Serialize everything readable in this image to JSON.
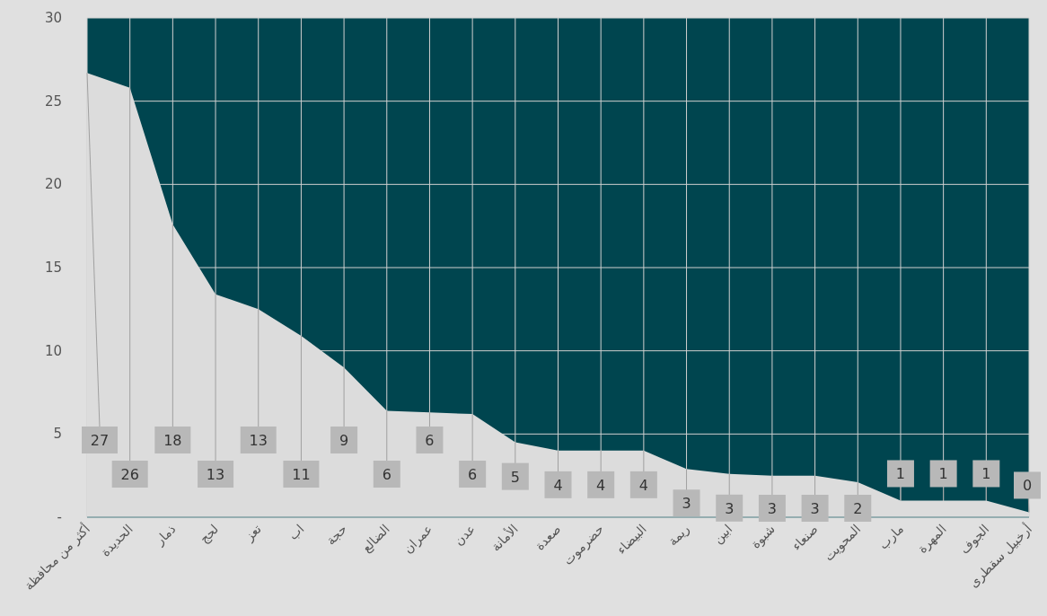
{
  "chart_data": {
    "type": "area",
    "categories": [
      "أكثر من محافظة",
      "الحديدة",
      "ذمار",
      "لحج",
      "تعز",
      "اب",
      "حجة",
      "الضالع",
      "عمران",
      "عدن",
      "الأمانة",
      "صعدة",
      "حضرموت",
      "البيضاء",
      "ريمة",
      "ابين",
      "شبوة",
      "صنعاء",
      "المحويت",
      "مارب",
      "المهرة",
      "الجوف",
      "أرخبيل سقطرى"
    ],
    "values": [
      26.7,
      25.8,
      17.6,
      13.4,
      12.5,
      10.9,
      9.0,
      6.4,
      6.3,
      6.2,
      4.5,
      4.0,
      4.0,
      4.0,
      2.9,
      2.6,
      2.5,
      2.5,
      2.1,
      1.0,
      1.0,
      1.0,
      0.3
    ],
    "value_labels": [
      "27",
      "26",
      "18",
      "13",
      "13",
      "11",
      "9",
      "6",
      "6",
      "6",
      "5",
      "4",
      "4",
      "4",
      "3",
      "3",
      "3",
      "3",
      "2",
      "1",
      "1",
      "1",
      "0"
    ],
    "color": "#dcdcdc",
    "ylim": [
      0,
      30
    ],
    "yticks": [
      {
        "value": 0,
        "label": "-"
      },
      5,
      10,
      15,
      20,
      25,
      30
    ],
    "grid": true
  }
}
